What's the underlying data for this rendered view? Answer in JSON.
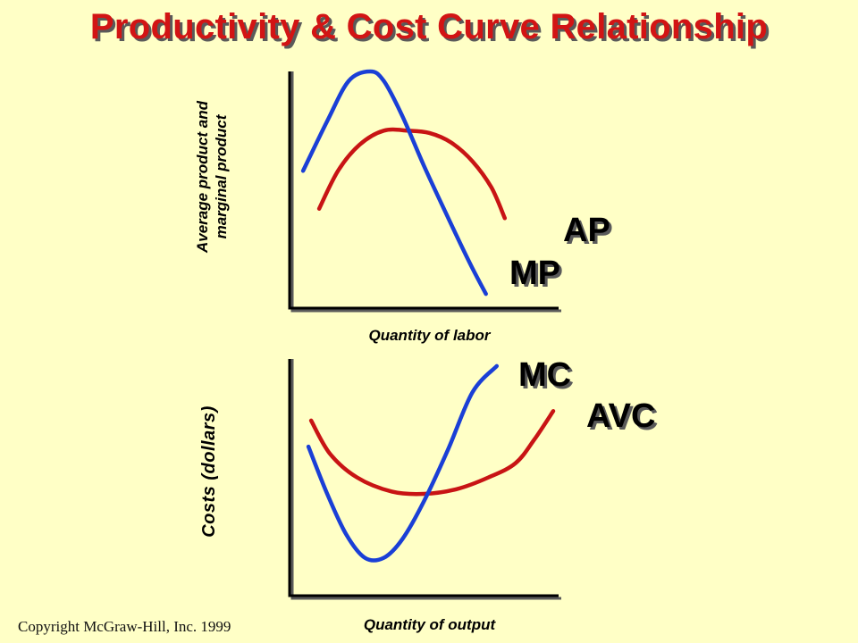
{
  "title": "Productivity & Cost Curve Relationship",
  "copyright": "Copyright McGraw-Hill, Inc. 1999",
  "colors": {
    "background": "#FFFFC6",
    "title": "#D21414",
    "red_curve": "#C81414",
    "blue_curve": "#1A3FD6",
    "axis": "#000000",
    "shadow": "#5a5a5a"
  },
  "chart_data": [
    {
      "type": "line",
      "xlabel": "Quantity of labor",
      "ylabel_lines": [
        "Average product and",
        "marginal product"
      ],
      "x_range": [
        0,
        10
      ],
      "y_range": [
        0,
        10
      ],
      "series": [
        {
          "name": "AP",
          "color": "red",
          "x": [
            1.1,
            1.8,
            2.6,
            3.5,
            4.4,
            5.2,
            6.0,
            6.8,
            7.5,
            8.0
          ],
          "y": [
            4.2,
            5.8,
            6.9,
            7.5,
            7.5,
            7.4,
            7.0,
            6.2,
            5.1,
            3.8
          ]
        },
        {
          "name": "MP",
          "color": "blue",
          "x": [
            0.5,
            1.4,
            2.2,
            3.0,
            3.5,
            4.2,
            5.0,
            5.9,
            6.7,
            7.3
          ],
          "y": [
            5.8,
            7.9,
            9.6,
            10.0,
            9.6,
            8.1,
            6.0,
            3.8,
            1.9,
            0.6
          ]
        }
      ]
    },
    {
      "type": "line",
      "xlabel": "Quantity of output",
      "ylabel": "Costs (dollars)",
      "x_range": [
        0,
        10
      ],
      "y_range": [
        0,
        10
      ],
      "series": [
        {
          "name": "AVC",
          "color": "red",
          "x": [
            0.8,
            1.5,
            2.5,
            3.8,
            5.0,
            6.2,
            7.4,
            8.4,
            9.1,
            9.8
          ],
          "y": [
            7.4,
            6.0,
            5.0,
            4.4,
            4.3,
            4.5,
            5.0,
            5.6,
            6.6,
            7.8
          ]
        },
        {
          "name": "MC",
          "color": "blue",
          "x": [
            0.7,
            1.4,
            2.1,
            2.8,
            3.5,
            4.2,
            5.0,
            5.9,
            6.8,
            7.7
          ],
          "y": [
            6.3,
            4.3,
            2.6,
            1.6,
            1.6,
            2.4,
            4.0,
            6.2,
            8.6,
            9.7
          ]
        }
      ]
    }
  ]
}
